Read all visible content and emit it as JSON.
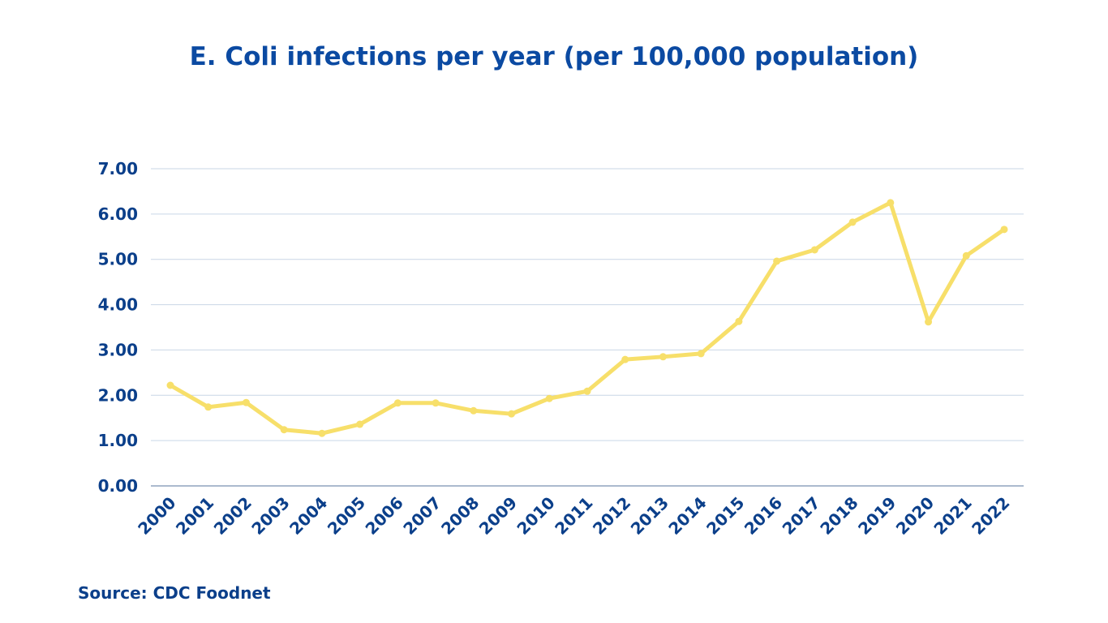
{
  "chart_data": {
    "type": "line",
    "title": "E. Coli infections per year (per 100,000 population)",
    "xlabel": "",
    "ylabel": "",
    "categories": [
      "2000",
      "2001",
      "2002",
      "2003",
      "2004",
      "2005",
      "2006",
      "2007",
      "2008",
      "2009",
      "2010",
      "2011",
      "2012",
      "2013",
      "2014",
      "2015",
      "2016",
      "2017",
      "2018",
      "2019",
      "2020",
      "2021",
      "2022"
    ],
    "series": [
      {
        "name": "E. Coli infections",
        "color": "#f7df6a",
        "values": [
          2.22,
          1.74,
          1.84,
          1.24,
          1.16,
          1.36,
          1.83,
          1.83,
          1.66,
          1.59,
          1.93,
          2.09,
          2.79,
          2.85,
          2.92,
          3.63,
          4.96,
          5.21,
          5.82,
          6.25,
          3.62,
          5.08,
          5.66
        ]
      }
    ],
    "ylim": [
      0,
      7
    ],
    "yticks": [
      "0.00",
      "1.00",
      "2.00",
      "3.00",
      "4.00",
      "5.00",
      "6.00",
      "7.00"
    ],
    "grid": true,
    "legend": "none",
    "source": "Source: CDC Foodnet"
  }
}
